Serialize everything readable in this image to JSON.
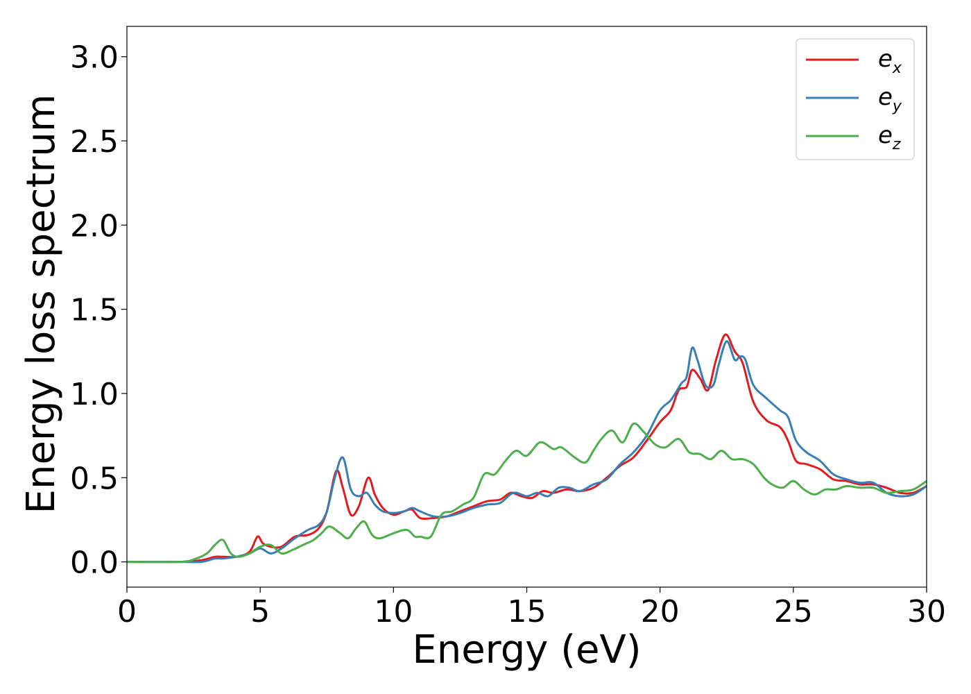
{
  "chart_data": {
    "type": "line",
    "xlabel": "Energy (eV)",
    "ylabel": "Energy loss spectrum",
    "xlim": [
      0,
      30
    ],
    "ylim": [
      -0.15,
      3.18
    ],
    "xticks": [
      "0",
      "5",
      "10",
      "15",
      "20",
      "25",
      "30"
    ],
    "yticks": [
      "0.0",
      "0.5",
      "1.0",
      "1.5",
      "2.0",
      "2.5",
      "3.0"
    ],
    "legend_position": "top-right",
    "grid": false,
    "series": [
      {
        "name": "e_x",
        "label_main": "e",
        "label_sub": "x",
        "color": "#e41a1c",
        "x": [
          0,
          2,
          2.8,
          3.3,
          3.6,
          4.1,
          4.6,
          4.9,
          5.1,
          5.4,
          5.8,
          6.3,
          6.8,
          7.2,
          7.5,
          7.85,
          8.1,
          8.4,
          8.7,
          9.05,
          9.3,
          9.6,
          10.0,
          10.4,
          10.7,
          11.0,
          11.5,
          12.0,
          12.5,
          13.0,
          13.5,
          14.0,
          14.4,
          14.8,
          15.2,
          15.6,
          16.0,
          16.5,
          17.0,
          17.5,
          18.0,
          18.5,
          19.0,
          19.5,
          20.0,
          20.4,
          20.7,
          21.0,
          21.2,
          21.5,
          21.8,
          22.1,
          22.45,
          22.8,
          23.1,
          23.5,
          24.0,
          24.5,
          24.8,
          25.1,
          25.5,
          26.0,
          26.5,
          27.0,
          27.5,
          28.0,
          28.5,
          29.0,
          29.5,
          30.0
        ],
        "values": [
          0.0,
          0.0,
          0.01,
          0.03,
          0.03,
          0.03,
          0.06,
          0.15,
          0.11,
          0.09,
          0.09,
          0.15,
          0.16,
          0.2,
          0.3,
          0.54,
          0.44,
          0.28,
          0.33,
          0.5,
          0.4,
          0.32,
          0.28,
          0.3,
          0.31,
          0.26,
          0.26,
          0.27,
          0.3,
          0.33,
          0.36,
          0.37,
          0.41,
          0.39,
          0.38,
          0.42,
          0.41,
          0.43,
          0.42,
          0.44,
          0.5,
          0.57,
          0.62,
          0.72,
          0.83,
          0.9,
          1.02,
          1.04,
          1.14,
          1.09,
          1.02,
          1.2,
          1.35,
          1.25,
          1.18,
          0.95,
          0.84,
          0.8,
          0.72,
          0.6,
          0.58,
          0.55,
          0.49,
          0.48,
          0.46,
          0.46,
          0.44,
          0.41,
          0.41,
          0.45
        ]
      },
      {
        "name": "e_y",
        "label_main": "e",
        "label_sub": "y",
        "color": "#377eb8",
        "x": [
          0,
          2,
          2.8,
          3.3,
          3.6,
          4.1,
          4.6,
          5.0,
          5.4,
          5.8,
          6.3,
          6.8,
          7.2,
          7.5,
          7.8,
          8.1,
          8.4,
          8.7,
          9.0,
          9.3,
          9.6,
          10.0,
          10.4,
          10.7,
          11.0,
          11.5,
          12.0,
          12.5,
          13.0,
          13.5,
          14.0,
          14.5,
          15.0,
          15.4,
          15.8,
          16.2,
          16.6,
          17.0,
          17.5,
          18.0,
          18.5,
          19.0,
          19.5,
          20.0,
          20.4,
          20.8,
          21.0,
          21.2,
          21.4,
          21.7,
          22.0,
          22.2,
          22.5,
          22.8,
          23.0,
          23.2,
          23.5,
          24.0,
          24.5,
          24.8,
          25.1,
          25.5,
          26.0,
          26.5,
          27.0,
          27.5,
          28.0,
          28.5,
          29.0,
          29.5,
          30.0
        ],
        "values": [
          0.0,
          0.0,
          0.0,
          0.02,
          0.02,
          0.03,
          0.05,
          0.08,
          0.05,
          0.08,
          0.14,
          0.19,
          0.22,
          0.3,
          0.5,
          0.62,
          0.43,
          0.39,
          0.41,
          0.34,
          0.3,
          0.29,
          0.3,
          0.32,
          0.3,
          0.27,
          0.27,
          0.29,
          0.32,
          0.34,
          0.35,
          0.41,
          0.39,
          0.41,
          0.39,
          0.44,
          0.44,
          0.42,
          0.46,
          0.49,
          0.58,
          0.65,
          0.75,
          0.9,
          0.96,
          1.06,
          1.1,
          1.27,
          1.2,
          1.05,
          1.05,
          1.17,
          1.31,
          1.2,
          1.22,
          1.2,
          1.05,
          0.97,
          0.9,
          0.86,
          0.72,
          0.65,
          0.6,
          0.52,
          0.49,
          0.47,
          0.47,
          0.41,
          0.39,
          0.4,
          0.45
        ]
      },
      {
        "name": "e_z",
        "label_main": "e",
        "label_sub": "z",
        "color": "#4daf4a",
        "x": [
          0,
          2,
          2.6,
          3.0,
          3.3,
          3.6,
          3.9,
          4.2,
          4.6,
          5.0,
          5.4,
          5.8,
          6.2,
          6.6,
          7.0,
          7.3,
          7.6,
          8.0,
          8.3,
          8.6,
          8.9,
          9.2,
          9.5,
          10.0,
          10.5,
          10.8,
          11.0,
          11.4,
          11.8,
          12.2,
          12.6,
          13.0,
          13.4,
          13.8,
          14.2,
          14.6,
          15.0,
          15.5,
          16.0,
          16.3,
          16.8,
          17.2,
          17.5,
          17.8,
          18.2,
          18.6,
          19.0,
          19.4,
          19.8,
          20.2,
          20.7,
          21.1,
          21.5,
          21.9,
          22.3,
          22.7,
          23.1,
          23.5,
          23.9,
          24.2,
          24.6,
          25.0,
          25.4,
          25.8,
          26.2,
          26.6,
          27.0,
          27.5,
          28.0,
          28.5,
          29.0,
          29.5,
          30.0
        ],
        "values": [
          0.0,
          0.0,
          0.02,
          0.05,
          0.1,
          0.13,
          0.05,
          0.03,
          0.05,
          0.09,
          0.1,
          0.05,
          0.07,
          0.1,
          0.13,
          0.17,
          0.21,
          0.17,
          0.14,
          0.2,
          0.24,
          0.16,
          0.14,
          0.17,
          0.19,
          0.15,
          0.15,
          0.15,
          0.28,
          0.3,
          0.34,
          0.38,
          0.52,
          0.52,
          0.6,
          0.66,
          0.63,
          0.71,
          0.67,
          0.68,
          0.62,
          0.59,
          0.66,
          0.73,
          0.78,
          0.71,
          0.82,
          0.77,
          0.7,
          0.68,
          0.73,
          0.65,
          0.64,
          0.61,
          0.66,
          0.61,
          0.61,
          0.58,
          0.5,
          0.46,
          0.44,
          0.48,
          0.43,
          0.4,
          0.43,
          0.43,
          0.45,
          0.44,
          0.44,
          0.41,
          0.42,
          0.43,
          0.48
        ]
      }
    ]
  }
}
